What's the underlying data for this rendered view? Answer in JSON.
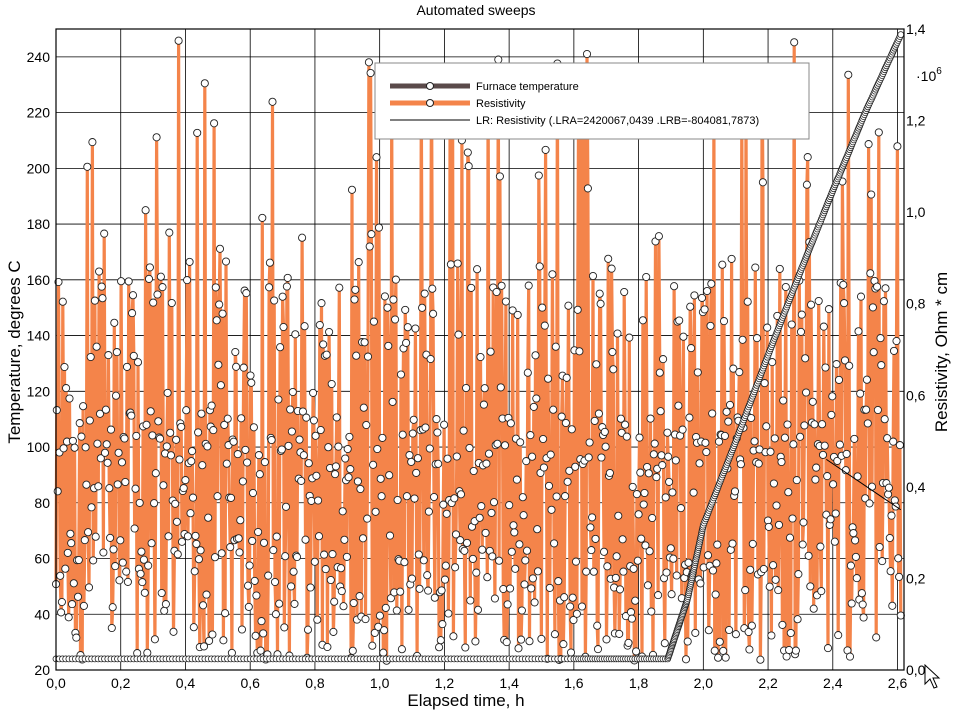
{
  "chart_data": {
    "type": "line",
    "title": "Automated sweeps",
    "xlabel": "Elapsed time, h",
    "ylabel_left": "Temperature, degrees C",
    "ylabel_right": "Resistivity, Ohm * cm",
    "right_exponent_base": "·10",
    "right_exponent": "6",
    "xlim": [
      0,
      2.62
    ],
    "ylim_left": [
      20,
      250
    ],
    "ylim_right": [
      0,
      1.4
    ],
    "x_ticks": [
      "0,0",
      "0,2",
      "0,4",
      "0,6",
      "0,8",
      "1,0",
      "1,2",
      "1,4",
      "1,6",
      "1,8",
      "2,0",
      "2,2",
      "2,4",
      "2,6"
    ],
    "x_tick_values": [
      0,
      0.2,
      0.4,
      0.6,
      0.8,
      1.0,
      1.2,
      1.4,
      1.6,
      1.8,
      2.0,
      2.2,
      2.4,
      2.6
    ],
    "y_left_ticks": [
      "20",
      "40",
      "60",
      "80",
      "100",
      "120",
      "140",
      "160",
      "180",
      "200",
      "220",
      "240"
    ],
    "y_left_tick_values": [
      20,
      40,
      60,
      80,
      100,
      120,
      140,
      160,
      180,
      200,
      220,
      240
    ],
    "y_right_ticks": [
      "0,0",
      "0,2",
      "0,4",
      "0,6",
      "0,8",
      "1,0",
      "1,2",
      "1,4"
    ],
    "y_right_tick_values": [
      0,
      0.2,
      0.4,
      0.6,
      0.8,
      1.0,
      1.2,
      1.4
    ],
    "grid": true,
    "legend_position": "top-right",
    "series": [
      {
        "name": "Furnace temperature",
        "axis": "left",
        "color": "#5a4a4a",
        "points_description": "flat near 24 °C from 0 to 1.89 h, then linear rise to 248 °C at 2.61 h",
        "x": [
          0.0,
          0.4,
          0.8,
          1.2,
          1.6,
          1.89,
          1.95,
          2.0,
          2.1,
          2.2,
          2.3,
          2.4,
          2.5,
          2.61
        ],
        "y": [
          24,
          24,
          24,
          24,
          24,
          24,
          45,
          72,
          102,
          133,
          163,
          192,
          220,
          248
        ]
      },
      {
        "name": "Resistivity",
        "axis": "right",
        "color": "#f4844a",
        "n_points": 1000,
        "x_range": [
          0.0,
          2.61
        ],
        "value_range": [
          0.0,
          1.38
        ],
        "note": "dense noisy trace between roughly 0.0 and 1.38 ·10^6 Ohm*cm"
      },
      {
        "name": "LR: Resistivity (.LRA=2420067,0439 .LRB=-804081,7873)",
        "axis": "right",
        "color": "#000000",
        "type": "line",
        "x": [
          2.38,
          2.61
        ],
        "y": [
          0.46,
          0.35
        ]
      }
    ]
  }
}
